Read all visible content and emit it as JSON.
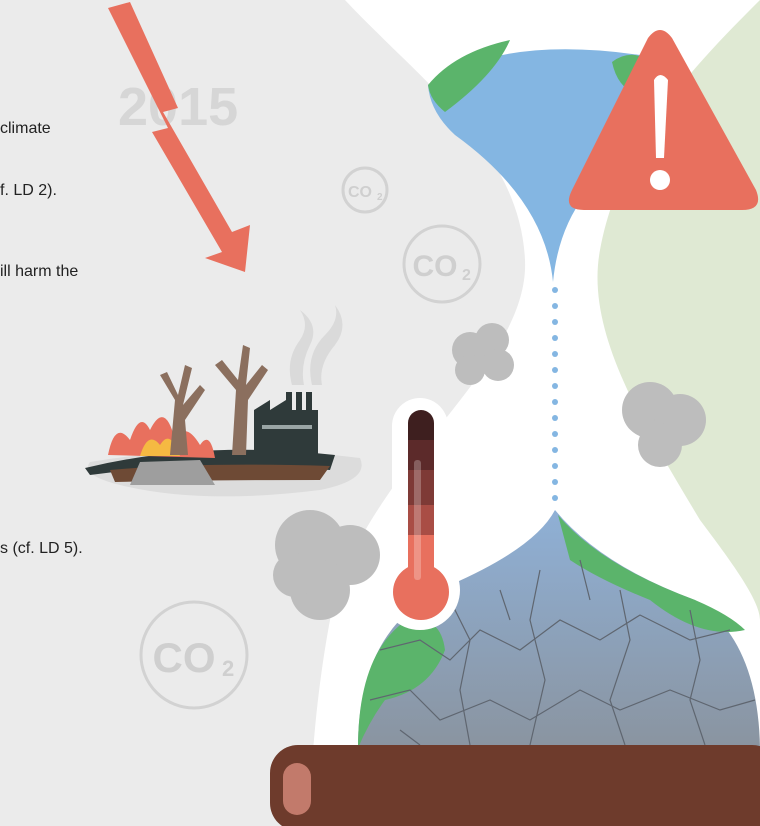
{
  "year_label": "2015",
  "text_fragments": [
    "climate",
    "f. LD 2).",
    "ill harm the",
    "s (cf. LD 5)."
  ],
  "co2_badges": [
    {
      "main": "CO",
      "sub": "2"
    },
    {
      "main": "CO",
      "sub": "2"
    },
    {
      "main": "CO",
      "sub": "2"
    }
  ]
}
